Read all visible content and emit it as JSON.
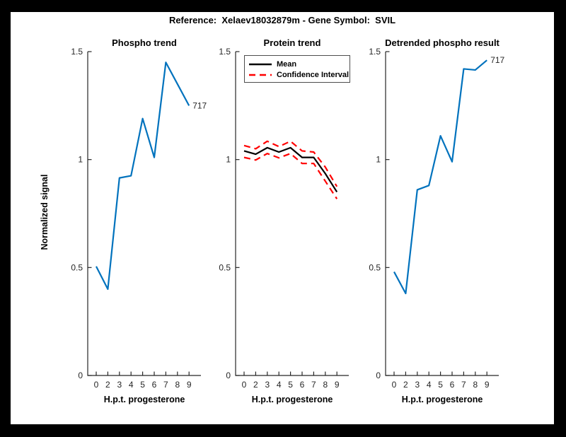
{
  "figure": {
    "title": "Reference:  Xelaev18032879m - Gene Symbol:  SVIL"
  },
  "colors": {
    "line_blue": "#0072BD",
    "mean_black": "#000000",
    "ci_red": "#ff0000",
    "axis": "#262626",
    "background": "#ffffff",
    "frame": "#000000"
  },
  "axes": {
    "ylabel": "Normalized signal",
    "xlabel": "H.p.t. progesterone",
    "ylim": [
      0,
      1.5
    ],
    "yticks": [
      0,
      0.5,
      1,
      1.5
    ],
    "ytick_labels": [
      "0",
      "0.5",
      "1",
      "1.5"
    ],
    "x": [
      0,
      2,
      3,
      4,
      5,
      6,
      7,
      8,
      9
    ],
    "xtick_labels": [
      "0",
      "2",
      "3",
      "4",
      "5",
      "6",
      "7",
      "8",
      "9"
    ],
    "grid": false
  },
  "chart_data": [
    {
      "type": "line",
      "title": "Phospho trend",
      "x": [
        0,
        2,
        3,
        4,
        5,
        6,
        7,
        8,
        9
      ],
      "series": [
        {
          "name": "phospho",
          "color": "#0072BD",
          "dash": null,
          "values": [
            0.505,
            0.4,
            0.915,
            0.925,
            1.19,
            1.01,
            1.45,
            1.35,
            1.25
          ]
        }
      ],
      "annotation": "717",
      "xlabel": "H.p.t. progesterone",
      "ylim": [
        0,
        1.5
      ]
    },
    {
      "type": "line",
      "title": "Protein trend",
      "x": [
        0,
        2,
        3,
        4,
        5,
        6,
        7,
        8,
        9
      ],
      "series": [
        {
          "name": "ci-upper",
          "color": "#ff0000",
          "dash": "9 6",
          "values": [
            1.065,
            1.05,
            1.085,
            1.06,
            1.085,
            1.04,
            1.035,
            0.965,
            0.875
          ]
        },
        {
          "name": "ci-lower",
          "color": "#ff0000",
          "dash": "9 6",
          "values": [
            1.01,
            0.998,
            1.028,
            1.008,
            1.028,
            0.982,
            0.982,
            0.9,
            0.818
          ]
        },
        {
          "name": "mean",
          "color": "#000000",
          "dash": null,
          "values": [
            1.04,
            1.025,
            1.055,
            1.035,
            1.055,
            1.01,
            1.01,
            0.935,
            0.85
          ]
        }
      ],
      "legend": [
        "Mean",
        "Confidence Interval"
      ],
      "legend_position": "northwest",
      "annotation": null,
      "xlabel": "H.p.t. progesterone",
      "ylim": [
        0,
        1.5
      ]
    },
    {
      "type": "line",
      "title": "Detrended phospho result",
      "x": [
        0,
        2,
        3,
        4,
        5,
        6,
        7,
        8,
        9
      ],
      "series": [
        {
          "name": "detrended-phospho",
          "color": "#0072BD",
          "dash": null,
          "values": [
            0.48,
            0.38,
            0.86,
            0.88,
            1.11,
            0.99,
            1.42,
            1.415,
            1.46
          ]
        }
      ],
      "annotation": "717",
      "xlabel": "H.p.t. progesterone",
      "ylim": [
        0,
        1.5
      ]
    }
  ]
}
